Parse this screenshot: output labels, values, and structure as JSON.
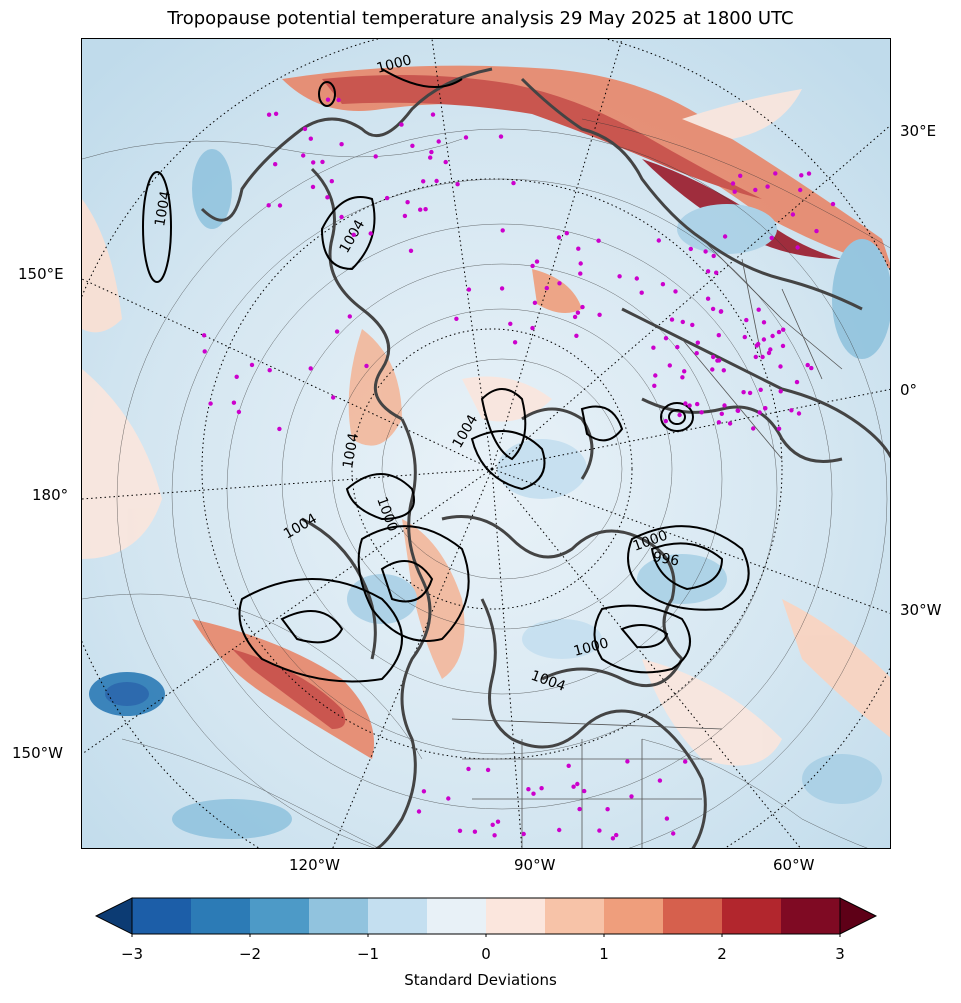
{
  "title": "Tropopause potential temperature analysis 29 May 2025 at 1800 UTC",
  "map": {
    "projection": "north polar stereographic",
    "longitude_labels_left": [
      "150°E",
      "180°",
      "150°W"
    ],
    "longitude_labels_right": [
      "30°E",
      "0°",
      "30°W"
    ],
    "longitude_labels_bottom": [
      "120°W",
      "90°W",
      "60°W"
    ],
    "pressure_contour_labels": [
      "1004",
      "1000",
      "1004",
      "1004",
      "1004",
      "1000",
      "1004",
      "1000",
      "996",
      "1000",
      "1004"
    ],
    "station_marker_color": "#cc00cc",
    "coastline_color": "#444444"
  },
  "colorbar": {
    "label": "Standard Deviations",
    "ticks": [
      "−3",
      "−2",
      "−1",
      "0",
      "1",
      "2",
      "3"
    ],
    "extend": "both",
    "colors": [
      "#0c3b73",
      "#1c5ea8",
      "#2c7bb6",
      "#4d9ac7",
      "#91c3de",
      "#c4dff0",
      "#e8f1f7",
      "#fbe6dd",
      "#f7c3a8",
      "#ef9e7c",
      "#d6604d",
      "#b2262d",
      "#7f0a23",
      "#5e0017"
    ]
  }
}
